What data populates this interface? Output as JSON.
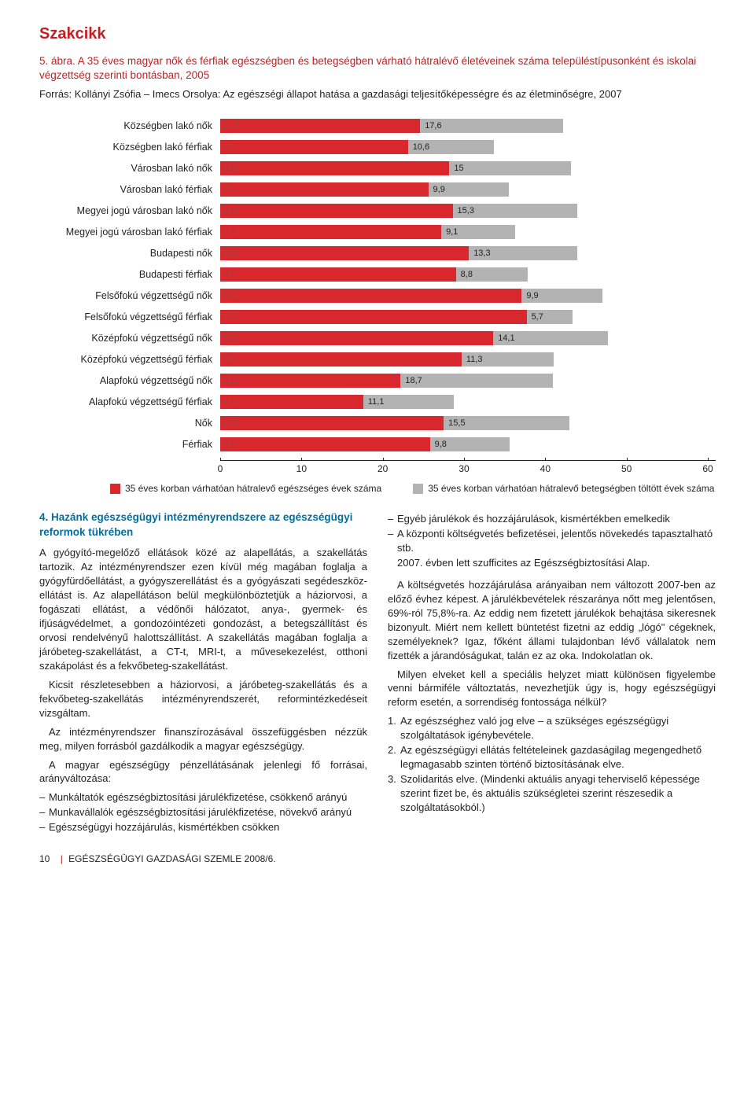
{
  "header": {
    "section": "Szakcikk"
  },
  "figure": {
    "caption_prefix": "5. ábra.",
    "caption": "A 35 éves magyar nők és férfiak egészségben és betegségben várható hátralévő életéveinek száma településtípusonként és iskolai végzettség szerinti bontásban, 2005",
    "source": "Forrás: Kollányi Zsófia – Imecs Orsolya: Az egészségi állapot hatása a gazdasági teljesítőképességre és az életminőségre, 2007"
  },
  "chart": {
    "type": "stacked-bar-horizontal",
    "xmax": 60,
    "xticks": [
      0,
      10,
      20,
      30,
      40,
      50,
      60
    ],
    "bar_color_1": "#d9272e",
    "bar_color_2": "#b3b3b3",
    "bg": "#ffffff",
    "label_fontsize": 12.5,
    "value_fontsize": 11,
    "rows": [
      {
        "label": "Községben lakó nők",
        "v1": 24.6,
        "v2": 17.6
      },
      {
        "label": "Községben lakó férfiak",
        "v1": 23.1,
        "v2": 10.6
      },
      {
        "label": "Városban lakó nők",
        "v1": 28.2,
        "v2": 15
      },
      {
        "label": "Városban lakó férfiak",
        "v1": 25.6,
        "v2": 9.9
      },
      {
        "label": "Megyei jogú városban lakó nők",
        "v1": 28.6,
        "v2": 15.3
      },
      {
        "label": "Megyei jogú városban lakó férfiak",
        "v1": 27.2,
        "v2": 9.1
      },
      {
        "label": "Budapesti nők",
        "v1": 30.6,
        "v2": 13.3
      },
      {
        "label": "Budapesti férfiak",
        "v1": 29,
        "v2": 8.8
      },
      {
        "label": "Felsőfokú végzettségű nők",
        "v1": 37.1,
        "v2": 9.9
      },
      {
        "label": "Felsőfokú végzettségű férfiak",
        "v1": 37.7,
        "v2": 5.7
      },
      {
        "label": "Középfokú végzettségű nők",
        "v1": 33.6,
        "v2": 14.1
      },
      {
        "label": "Középfokú végzettségű férfiak",
        "v1": 29.7,
        "v2": 11.3
      },
      {
        "label": "Alapfokú végzettségű nők",
        "v1": 22.2,
        "v2": 18.7
      },
      {
        "label": "Alapfokú végzettségű férfiak",
        "v1": 17.6,
        "v2": 11.1
      },
      {
        "label": "Nők",
        "v1": 27.5,
        "v2": 15.5
      },
      {
        "label": "Férfiak",
        "v1": 25.8,
        "v2": 9.8
      }
    ],
    "legend": {
      "item1": "35 éves korban várhatóan hátralevő egészséges évek száma",
      "item2": "35 éves korban várhatóan hátralevő betegségben töltött évek száma"
    }
  },
  "body": {
    "left": {
      "heading": "4. Hazánk egészségügyi intézményrendszere az egészségügyi reformok tükrében",
      "p1": "A gyógyító-megelőző ellátások közé az alapellátás, a szakellátás tartozik. Az intézményrendszer ezen kívül még magában foglalja a gyógyfürdőellátást, a gyógyszerellátást és a gyógyászati segédeszköz-ellátást is. Az alapellátáson belül megkülönböztetjük a háziorvosi, a fogászati ellátást, a védőnői hálózatot, anya-, gyermek- és ifjúságvédelmet, a gondozóintézeti gondozást, a betegszállítást és orvosi rendelvényű halottszállítást. A szakellátás magában foglalja a járóbeteg-szakellátást, a CT-t, MRI-t, a művesekezelést, otthoni szakápolást és a fekvőbeteg-szakellátást.",
      "p2": "Kicsit részletesebben a háziorvosi, a járóbeteg-szakellátás és a fekvőbeteg-szakellátás intézményrendszerét, reformintézkedéseit vizsgáltam.",
      "p3": "Az intézményrendszer finanszírozásával összefüggésben nézzük meg, milyen forrásból gazdálkodik a magyar egészségügy.",
      "p4": "A magyar egészségügy pénzellátásának jelenlegi fő forrásai, arányváltozása:",
      "bullets": [
        "Munkáltatók egészségbiztosítási járulékfizetése, csökkenő arányú",
        "Munkavállalók egészségbiztosítási járulékfizetése, növekvő arányú",
        "Egészségügyi hozzájárulás, kismértékben csökken"
      ]
    },
    "right": {
      "bullets_top": [
        "Egyéb járulékok és hozzájárulások, kismértékben emelkedik",
        "A központi költségvetés befizetései, jelentős növekedés tapasztalható stb."
      ],
      "p1": "2007. évben lett szufficites az Egészségbiztosítási Alap.",
      "p2": "A költségvetés hozzájárulása arányaiban nem változott 2007-ben az előző évhez képest. A járulékbevételek részaránya nőtt meg jelentősen, 69%-ról 75,8%-ra. Az eddig nem fizetett járulékok behajtása sikeresnek bizonyult. Miért nem kellett büntetést fizetni az eddig „lógó\" cégeknek, személyeknek? Igaz, főként állami tulajdonban lévő vállalatok nem fizették a járandóságukat, talán ez az oka. Indokolatlan ok.",
      "p3": "Milyen elveket kell a speciális helyzet miatt különösen figyelembe venni bármiféle változtatás, nevezhetjük úgy is, hogy egészségügyi reform esetén, a sorrendiség fontossága nélkül?",
      "numbered": [
        "Az egészséghez való jog elve – a szükséges egészségügyi szolgáltatások igénybevétele.",
        "Az egészségügyi ellátás feltételeinek gazdaságilag megengedhető legmagasabb szinten történő biztosításának elve.",
        "Szolidaritás elve.  (Mindenki aktuális anyagi teherviselő képessége szerint fizet be, és aktuális szükségletei szerint részesedik a szolgáltatásokból.)"
      ]
    }
  },
  "footer": {
    "page": "10",
    "journal": "EGÉSZSÉGÜGYI GAZDASÁGI SZEMLE 2008/6."
  },
  "colors": {
    "brand_red": "#c41e23",
    "heading_blue": "#006f9e",
    "text": "#231f20"
  }
}
